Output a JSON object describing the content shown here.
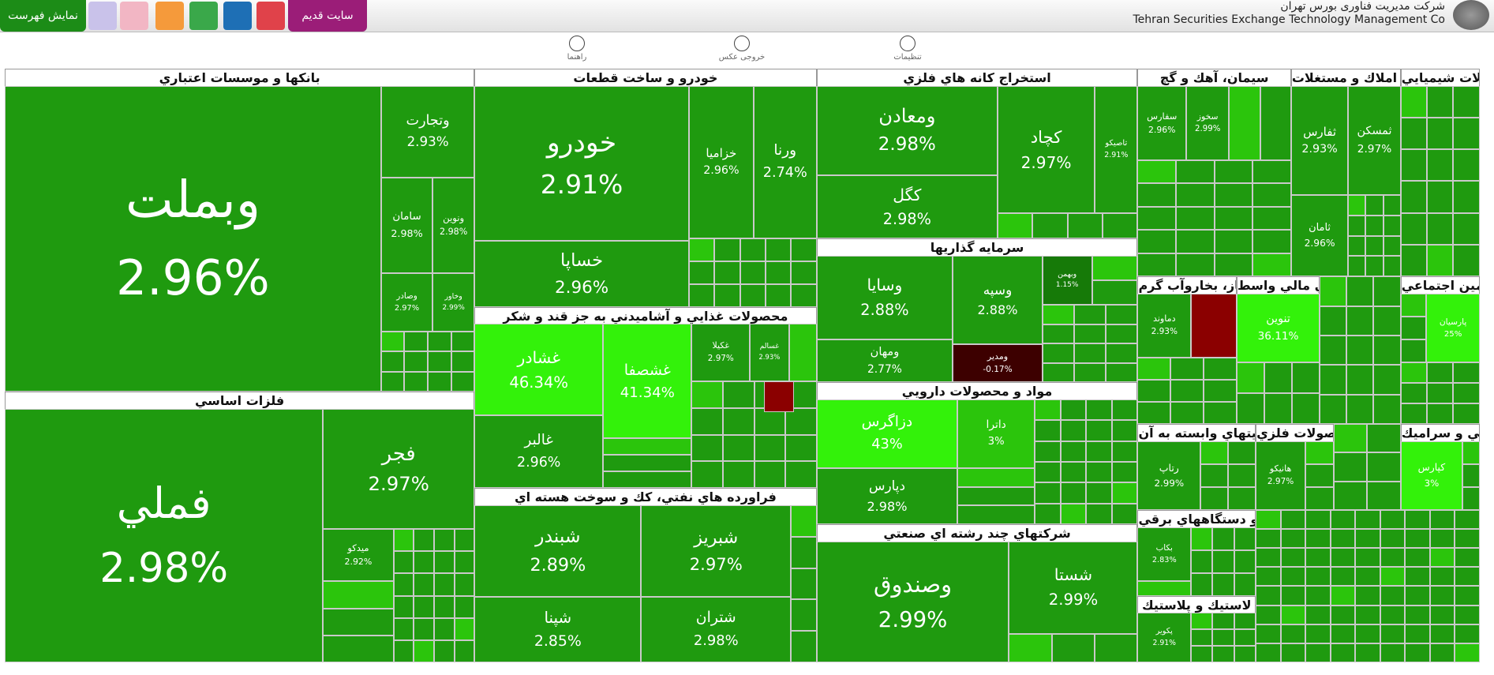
{
  "header": {
    "company_fa": "شرکت مدیریت فناوری بورس تهران",
    "company_en": "Tehran Securities Exchange Technology Management Co",
    "show_list": "نمایش فهرست",
    "old_site": "سایت قدیم"
  },
  "toolbar": [
    "راهنما",
    "خروجی عکس",
    "تنظیمات"
  ],
  "sectors": [
    {
      "title": "بانکها و موسسات اعتباري",
      "tiles": [
        {
          "symbol": "وبملت",
          "change": "2.96%"
        },
        {
          "symbol": "وتجارت",
          "change": "2.93%"
        },
        {
          "symbol": "سامان",
          "change": "2.98%"
        },
        {
          "symbol": "ونوين",
          "change": "2.98%"
        },
        {
          "symbol": "وصادر",
          "change": "2.97%"
        },
        {
          "symbol": "وخاور",
          "change": "2.99%"
        }
      ]
    },
    {
      "title": "فلزات اساسي",
      "tiles": [
        {
          "symbol": "فملي",
          "change": "2.98%"
        },
        {
          "symbol": "فجر",
          "change": "2.97%"
        },
        {
          "symbol": "ميدكو",
          "change": "2.92%"
        }
      ]
    },
    {
      "title": "خودرو و ساخت قطعات",
      "tiles": [
        {
          "symbol": "خودرو",
          "change": "2.91%"
        },
        {
          "symbol": "خساپا",
          "change": "2.96%"
        },
        {
          "symbol": "خزاميا",
          "change": "2.96%"
        },
        {
          "symbol": "ورنا",
          "change": "2.74%"
        }
      ]
    },
    {
      "title": "محصولات غذايي و آشاميدني به جز قند و شكر",
      "tiles": [
        {
          "symbol": "غشادر",
          "change": "46.34%"
        },
        {
          "symbol": "غشصفا",
          "change": "41.34%"
        },
        {
          "symbol": "غالبر",
          "change": "2.96%"
        },
        {
          "symbol": "غكيلا",
          "change": "2.97%"
        },
        {
          "symbol": "غسالم",
          "change": "2.93%"
        }
      ]
    },
    {
      "title": "فراورده هاي نفتي، كك و سوخت هسته اي",
      "tiles": [
        {
          "symbol": "شبندر",
          "change": "2.89%"
        },
        {
          "symbol": "شبريز",
          "change": "2.97%"
        },
        {
          "symbol": "شپنا",
          "change": "2.85%"
        },
        {
          "symbol": "شتران",
          "change": "2.98%"
        }
      ]
    },
    {
      "title": "استخراج كانه هاي فلزي",
      "tiles": [
        {
          "symbol": "ومعادن",
          "change": "2.98%"
        },
        {
          "symbol": "كگل",
          "change": "2.98%"
        },
        {
          "symbol": "كچاد",
          "change": "2.97%"
        },
        {
          "symbol": "تاصيكو",
          "change": "2.91%"
        }
      ]
    },
    {
      "title": "سرمايه گذاريها",
      "tiles": [
        {
          "symbol": "وسايا",
          "change": "2.88%"
        },
        {
          "symbol": "وسپه",
          "change": "2.88%"
        },
        {
          "symbol": "وبهمن",
          "change": "1.15%"
        },
        {
          "symbol": "ومهان",
          "change": "2.77%"
        },
        {
          "symbol": "ومدير",
          "change": "-0.17%"
        }
      ]
    },
    {
      "title": "مواد و محصولات دارويي",
      "tiles": [
        {
          "symbol": "دزاگرس",
          "change": "43%"
        },
        {
          "symbol": "داترا",
          "change": "3%"
        },
        {
          "symbol": "دپارس",
          "change": "2.98%"
        }
      ]
    },
    {
      "title": "شركتهاي چند رشته اي صنعتي",
      "tiles": [
        {
          "symbol": "وصندوق",
          "change": "2.99%"
        },
        {
          "symbol": "شستا",
          "change": "2.99%"
        }
      ]
    },
    {
      "title": "سيمان، آهك و گچ",
      "tiles": [
        {
          "symbol": "سفارس",
          "change": "2.96%"
        },
        {
          "symbol": "سخوز",
          "change": "2.99%"
        }
      ]
    },
    {
      "title": "انبوه سازي، املاك و مستغلات",
      "tiles": [
        {
          "symbol": "ثفارس",
          "change": "2.93%"
        },
        {
          "symbol": "ثمسكن",
          "change": "2.97%"
        },
        {
          "symbol": "ثامان",
          "change": "2.96%"
        }
      ]
    },
    {
      "title": "محصولات شيميايي",
      "tiles": []
    },
    {
      "title": "عرضه برق، گاز، بخاروآب گرم",
      "tiles": [
        {
          "symbol": "دماوند",
          "change": "2.93%"
        }
      ]
    },
    {
      "title": "فعاليتهاي كمكي به نهادهاي مالي واسط",
      "tiles": [
        {
          "symbol": "تنوين",
          "change": "36.11%"
        }
      ]
    },
    {
      "title": "بيمه وصندوق بازنشستگي به جز تامين اجتماعي",
      "tiles": [
        {
          "symbol": "پارسيان",
          "change": "25%"
        }
      ]
    },
    {
      "title": "رايانه و فعاليتهاي وابسته به آن",
      "tiles": [
        {
          "symbol": "رتاپ",
          "change": "2.99%"
        }
      ]
    },
    {
      "title": "محصولات فلزي",
      "tiles": [
        {
          "symbol": "هانيكو",
          "change": "2.97%"
        }
      ]
    },
    {
      "title": "كاشي و سراميك",
      "tiles": [
        {
          "symbol": "كپارس",
          "change": "3%"
        }
      ]
    },
    {
      "title": "ماشين آلات و دستگاههاي برقي",
      "tiles": [
        {
          "symbol": "بكاب",
          "change": "2.83%"
        }
      ]
    },
    {
      "title": "لاستيك و پلاستيك",
      "tiles": [
        {
          "symbol": "پكوير",
          "change": "2.91%"
        }
      ]
    }
  ]
}
